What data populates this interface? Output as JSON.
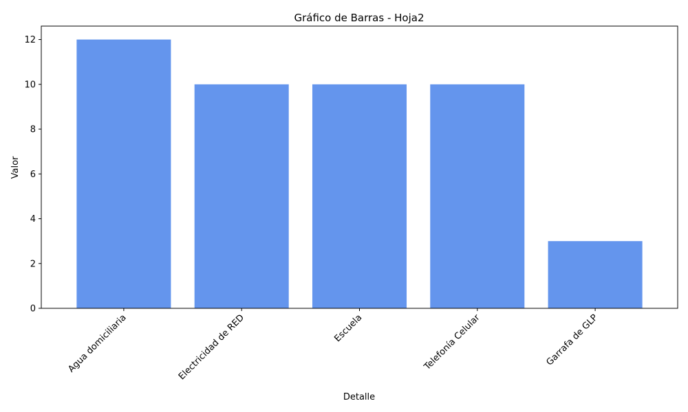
{
  "chart_data": {
    "type": "bar",
    "title": "Gráfico de Barras - Hoja2",
    "xlabel": "Detalle",
    "ylabel": "Valor",
    "categories": [
      "Agua domiciliaria",
      "Electricidad de RED",
      "Escuela",
      "Telefonía Celular",
      "Garrafa de GLP"
    ],
    "values": [
      12,
      10,
      10,
      10,
      3
    ],
    "ylim": [
      0,
      12.6
    ],
    "yticks": [
      0,
      2,
      4,
      6,
      8,
      10,
      12
    ],
    "bar_color": "#6495ED",
    "grid": false,
    "legend": "none"
  }
}
